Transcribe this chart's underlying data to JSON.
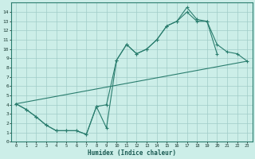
{
  "xlabel": "Humidex (Indice chaleur)",
  "bg_color": "#cceee8",
  "line_color": "#2a7d6e",
  "grid_color": "#a0ccc8",
  "xlim": [
    -0.5,
    23.5
  ],
  "ylim": [
    0,
    15
  ],
  "xticks": [
    0,
    1,
    2,
    3,
    4,
    5,
    6,
    7,
    8,
    9,
    10,
    11,
    12,
    13,
    14,
    15,
    16,
    17,
    18,
    19,
    20,
    21,
    22,
    23
  ],
  "yticks": [
    0,
    1,
    2,
    3,
    4,
    5,
    6,
    7,
    8,
    9,
    10,
    11,
    12,
    13,
    14
  ],
  "curve1_x": [
    0,
    1,
    2,
    3,
    4,
    5,
    6,
    7,
    8,
    9,
    10,
    11,
    12,
    13,
    14,
    15,
    16,
    17,
    18,
    19,
    20
  ],
  "curve1_y": [
    4.1,
    3.5,
    2.7,
    1.8,
    1.2,
    1.2,
    1.2,
    0.8,
    3.8,
    1.5,
    8.8,
    10.5,
    9.5,
    10.0,
    11.0,
    12.5,
    13.0,
    14.0,
    13.0,
    13.0,
    9.5
  ],
  "curve2_x": [
    0,
    1,
    2,
    3,
    4,
    5,
    6,
    7,
    8,
    9,
    10,
    11,
    12,
    13,
    14,
    15,
    16,
    17,
    18,
    19,
    20,
    21,
    22,
    23
  ],
  "curve2_y": [
    4.1,
    3.5,
    2.7,
    1.8,
    1.2,
    1.2,
    1.2,
    0.8,
    3.8,
    4.0,
    8.8,
    10.5,
    9.5,
    10.0,
    11.0,
    12.5,
    13.0,
    14.5,
    13.2,
    13.0,
    10.5,
    9.7,
    9.5,
    8.7
  ],
  "curve3_x": [
    0,
    23
  ],
  "curve3_y": [
    4.1,
    8.7
  ]
}
